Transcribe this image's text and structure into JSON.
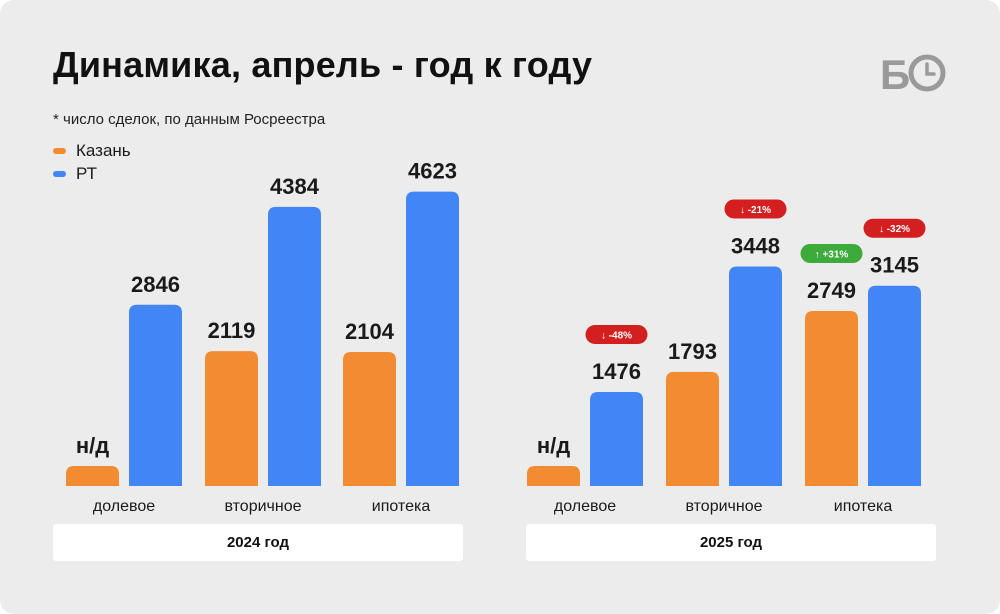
{
  "title": "Динамика, апрель - год к году",
  "subtitle": "* число сделок, по данным Росреестра",
  "legend": [
    {
      "label": "Казань",
      "color": "#f28c33"
    },
    {
      "label": "РТ",
      "color": "#4285f4"
    }
  ],
  "logo": {
    "text": "Б",
    "icon": "clock-icon",
    "color": "#9a9a9a"
  },
  "colors": {
    "up": "#3dab3b",
    "down": "#d31f20"
  },
  "chart_data": [
    {
      "type": "bar",
      "title": "2024 год",
      "categories": [
        "долевое",
        "вторичное",
        "ипотека"
      ],
      "series": [
        {
          "name": "Казань",
          "values": [
            null,
            2119,
            2104
          ],
          "labels": [
            "н/д",
            "2119",
            "2104"
          ]
        },
        {
          "name": "РТ",
          "values": [
            2846,
            4384,
            4623
          ],
          "labels": [
            "2846",
            "4384",
            "4623"
          ]
        }
      ],
      "ylim": [
        0,
        4900
      ]
    },
    {
      "type": "bar",
      "title": "2025 год",
      "categories": [
        "долевое",
        "вторичное",
        "ипотека"
      ],
      "series": [
        {
          "name": "Казань",
          "values": [
            null,
            1793,
            2749
          ],
          "labels": [
            "н/д",
            "1793",
            "2749"
          ],
          "changes": [
            null,
            null,
            "↑ +31%"
          ]
        },
        {
          "name": "РТ",
          "values": [
            1476,
            3448,
            3145
          ],
          "labels": [
            "1476",
            "3448",
            "3145"
          ],
          "changes": [
            "↓ -48%",
            "↓ -21%",
            "↓ -32%"
          ]
        }
      ],
      "ylim": [
        0,
        4900
      ]
    }
  ]
}
